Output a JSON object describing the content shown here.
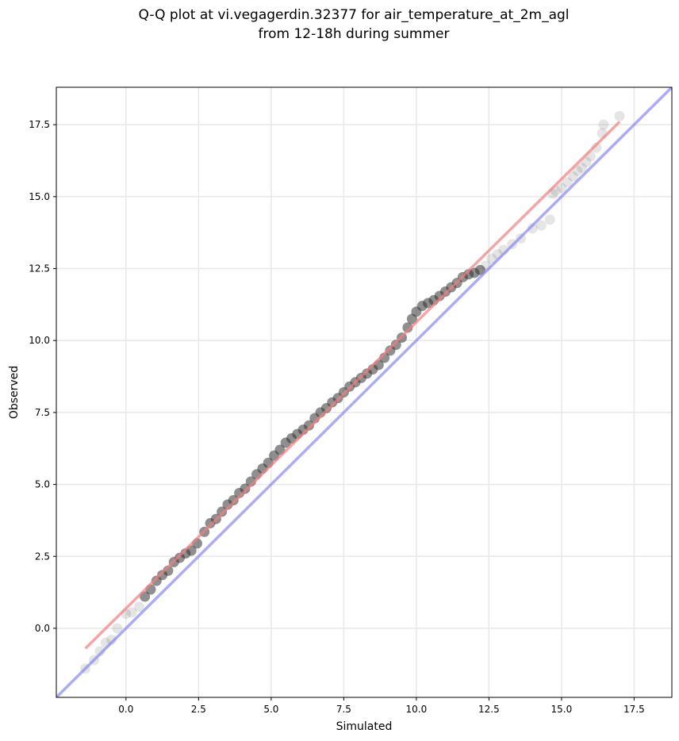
{
  "chart_data": {
    "type": "scatter",
    "title_lines": [
      "Q-Q plot at vi.vegagerdin.32377 for air_temperature_at_2m_agl",
      "from 12-18h during summer"
    ],
    "xlabel": "Simulated",
    "ylabel": "Observed",
    "xlim": [
      -2.4,
      18.8
    ],
    "ylim": [
      -2.4,
      18.8
    ],
    "x_ticks": [
      0.0,
      2.5,
      5.0,
      7.5,
      10.0,
      12.5,
      15.0,
      17.5
    ],
    "y_ticks": [
      0.0,
      2.5,
      5.0,
      7.5,
      10.0,
      12.5,
      15.0,
      17.5
    ],
    "tick_labels_x": [
      "0.0",
      "2.5",
      "5.0",
      "7.5",
      "10.0",
      "12.5",
      "15.0",
      "17.5"
    ],
    "tick_labels_y": [
      "0.0",
      "2.5",
      "5.0",
      "7.5",
      "10.0",
      "12.5",
      "15.0",
      "17.5"
    ],
    "grid": true,
    "colors": {
      "points": "#333333",
      "fit_line": "#f08080",
      "identity_line": "#8080ee",
      "grid": "#e8e8e8"
    },
    "fit_line": {
      "x": [
        -1.4,
        17.0
      ],
      "y": [
        -0.7,
        17.6
      ]
    },
    "identity_line": {
      "x": [
        -2.4,
        18.8
      ],
      "y": [
        -2.4,
        18.8
      ]
    },
    "points": {
      "x": [
        -1.4,
        -1.1,
        -0.9,
        -0.7,
        -0.5,
        -0.3,
        0.0,
        0.2,
        0.45,
        0.65,
        0.85,
        1.05,
        1.25,
        1.45,
        1.65,
        1.85,
        2.05,
        2.25,
        2.45,
        2.7,
        2.9,
        3.1,
        3.3,
        3.5,
        3.7,
        3.9,
        4.1,
        4.3,
        4.5,
        4.7,
        4.9,
        5.1,
        5.3,
        5.5,
        5.7,
        5.9,
        6.1,
        6.3,
        6.5,
        6.7,
        6.9,
        7.1,
        7.3,
        7.5,
        7.7,
        7.9,
        8.1,
        8.3,
        8.5,
        8.7,
        8.9,
        9.1,
        9.3,
        9.5,
        9.7,
        9.85,
        10.0,
        10.2,
        10.4,
        10.6,
        10.8,
        11.0,
        11.2,
        11.4,
        11.6,
        11.8,
        12.0,
        12.2,
        12.4,
        12.6,
        12.8,
        13.0,
        13.3,
        13.6,
        14.0,
        14.3,
        14.6,
        14.7,
        14.8,
        15.0,
        15.2,
        15.4,
        15.55,
        15.7,
        15.85,
        16.0,
        16.2,
        16.4,
        16.45,
        17.0
      ],
      "y": [
        -1.4,
        -1.1,
        -0.8,
        -0.5,
        -0.4,
        0.0,
        0.5,
        0.55,
        0.75,
        1.1,
        1.35,
        1.65,
        1.85,
        2.0,
        2.3,
        2.45,
        2.6,
        2.7,
        2.95,
        3.35,
        3.65,
        3.8,
        4.05,
        4.3,
        4.45,
        4.7,
        4.85,
        5.1,
        5.35,
        5.55,
        5.75,
        6.0,
        6.2,
        6.45,
        6.6,
        6.75,
        6.9,
        7.05,
        7.3,
        7.5,
        7.65,
        7.85,
        8.0,
        8.2,
        8.4,
        8.55,
        8.7,
        8.85,
        9.0,
        9.15,
        9.4,
        9.65,
        9.85,
        10.1,
        10.45,
        10.75,
        11.0,
        11.2,
        11.3,
        11.4,
        11.55,
        11.7,
        11.85,
        12.0,
        12.2,
        12.3,
        12.35,
        12.45,
        12.6,
        12.85,
        13.0,
        13.15,
        13.35,
        13.55,
        13.9,
        14.0,
        14.2,
        15.1,
        15.2,
        15.3,
        15.5,
        15.7,
        15.9,
        16.0,
        16.2,
        16.4,
        16.7,
        17.2,
        17.5,
        17.8
      ]
    }
  }
}
